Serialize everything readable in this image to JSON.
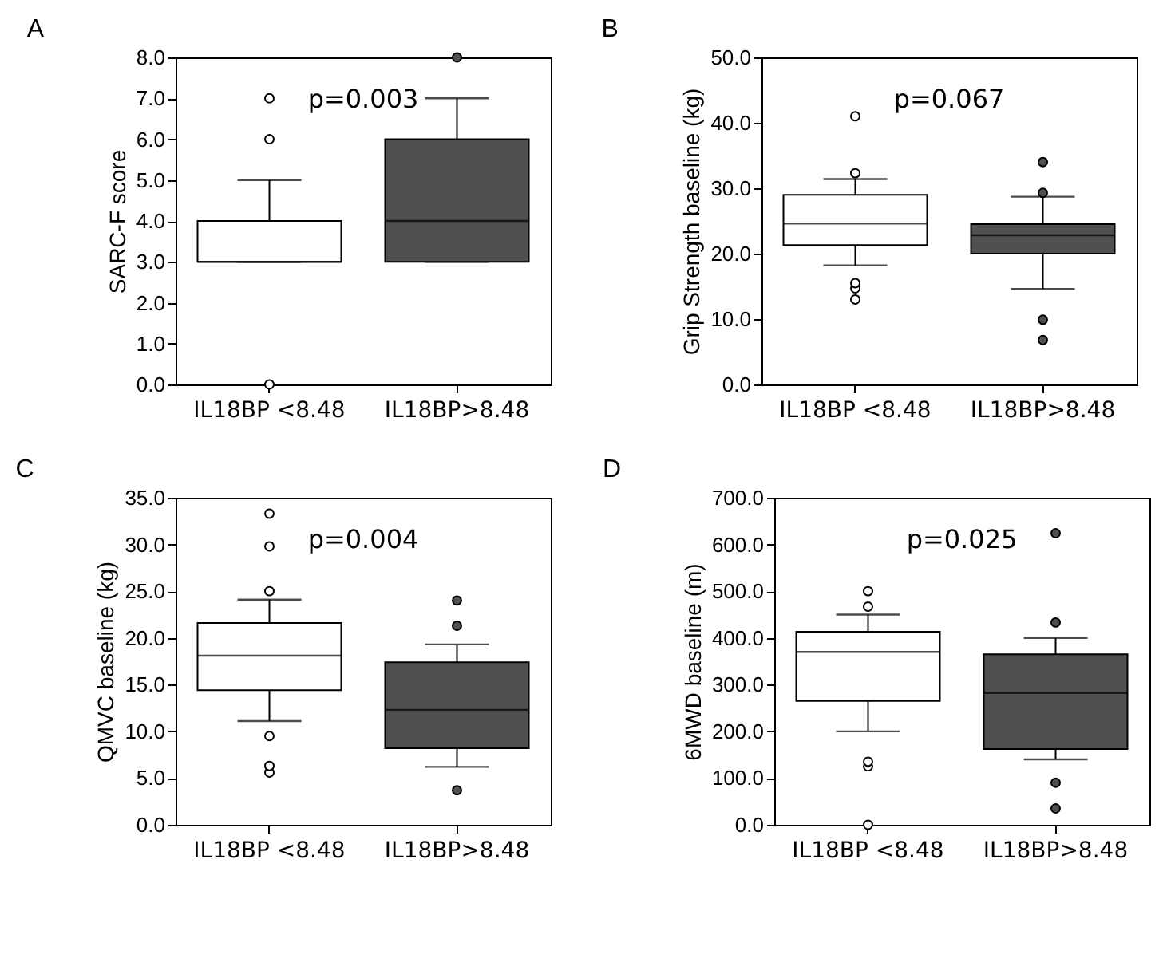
{
  "chart_data": [
    {
      "type": "box",
      "title": "A",
      "ylabel": "SARC-F score",
      "categories": [
        "IL18BP <8.48",
        "IL18BP>8.48"
      ],
      "colors": [
        "#ffffff",
        "#505050"
      ],
      "ylim": [
        0,
        8
      ],
      "yticks": [
        {
          "value": 0,
          "label": "0.0"
        },
        {
          "value": 1,
          "label": "1.0"
        },
        {
          "value": 2,
          "label": "2.0"
        },
        {
          "value": 3,
          "label": "3.0"
        },
        {
          "value": 4,
          "label": "4.0"
        },
        {
          "value": 5,
          "label": "5.0"
        },
        {
          "value": 6,
          "label": "6.0"
        },
        {
          "value": 7,
          "label": "7.0"
        },
        {
          "value": 8,
          "label": "8.0"
        }
      ],
      "grid": false,
      "annotations": [
        "p=0.003"
      ],
      "boxes": [
        {
          "low": 3,
          "q1": 3,
          "median": 3,
          "q3": 4,
          "high": 5,
          "outliers": [
            0,
            6,
            7
          ]
        },
        {
          "low": 3,
          "q1": 3,
          "median": 4,
          "q3": 6,
          "high": 7,
          "outliers": [
            8
          ]
        }
      ]
    },
    {
      "type": "box",
      "title": "B",
      "ylabel": "Grip Strength baseline (kg)",
      "categories": [
        "IL18BP <8.48",
        "IL18BP>8.48"
      ],
      "colors": [
        "#ffffff",
        "#505050"
      ],
      "ylim": [
        0,
        50
      ],
      "yticks": [
        {
          "value": 0,
          "label": "0.0"
        },
        {
          "value": 10,
          "label": "10.0"
        },
        {
          "value": 20,
          "label": "20.0"
        },
        {
          "value": 30,
          "label": "30.0"
        },
        {
          "value": 40,
          "label": "40.0"
        },
        {
          "value": 50,
          "label": "50.0"
        }
      ],
      "grid": false,
      "annotations": [
        "p=0.067"
      ],
      "boxes": [
        {
          "low": 18.2,
          "q1": 21.3,
          "median": 24.6,
          "q3": 29.0,
          "high": 31.4,
          "outliers": [
            13.0,
            14.7,
            15.5,
            32.3,
            41.0
          ]
        },
        {
          "low": 14.6,
          "q1": 20.0,
          "median": 22.8,
          "q3": 24.5,
          "high": 28.7,
          "outliers": [
            6.8,
            9.9,
            29.3,
            34.0
          ]
        }
      ]
    },
    {
      "type": "box",
      "title": "C",
      "ylabel": "QMVC baseline (kg)",
      "categories": [
        "IL18BP <8.48",
        "IL18BP>8.48"
      ],
      "colors": [
        "#ffffff",
        "#505050"
      ],
      "ylim": [
        0,
        35
      ],
      "yticks": [
        {
          "value": 0,
          "label": "0.0"
        },
        {
          "value": 5,
          "label": "5.0"
        },
        {
          "value": 10,
          "label": "10.0"
        },
        {
          "value": 15,
          "label": "15.0"
        },
        {
          "value": 20,
          "label": "20.0"
        },
        {
          "value": 25,
          "label": "25.0"
        },
        {
          "value": 30,
          "label": "30.0"
        },
        {
          "value": 35,
          "label": "35.0"
        }
      ],
      "grid": false,
      "annotations": [
        "p=0.004"
      ],
      "boxes": [
        {
          "low": 11.1,
          "q1": 14.4,
          "median": 18.1,
          "q3": 21.6,
          "high": 24.1,
          "outliers": [
            5.6,
            6.3,
            9.5,
            25.0,
            29.8,
            33.3
          ]
        },
        {
          "low": 6.2,
          "q1": 8.2,
          "median": 12.3,
          "q3": 17.4,
          "high": 19.3,
          "outliers": [
            3.7,
            21.3,
            24.0
          ]
        }
      ]
    },
    {
      "type": "box",
      "title": "D",
      "ylabel": "6MWD baseline (m)",
      "categories": [
        "IL18BP <8.48",
        "IL18BP>8.48"
      ],
      "colors": [
        "#ffffff",
        "#505050"
      ],
      "ylim": [
        0,
        700
      ],
      "yticks": [
        {
          "value": 0,
          "label": "0.0"
        },
        {
          "value": 100,
          "label": "100.0"
        },
        {
          "value": 200,
          "label": "200.0"
        },
        {
          "value": 300,
          "label": "300.0"
        },
        {
          "value": 400,
          "label": "400.0"
        },
        {
          "value": 500,
          "label": "500.0"
        },
        {
          "value": 600,
          "label": "600.0"
        },
        {
          "value": 700,
          "label": "700.0"
        }
      ],
      "grid": false,
      "annotations": [
        "p=0.025"
      ],
      "boxes": [
        {
          "low": 200,
          "q1": 265,
          "median": 370,
          "q3": 413,
          "high": 450,
          "outliers": [
            0,
            125,
            135,
            467,
            500
          ]
        },
        {
          "low": 140,
          "q1": 162,
          "median": 282,
          "q3": 365,
          "high": 400,
          "outliers": [
            35,
            90,
            433,
            624
          ]
        }
      ]
    }
  ]
}
